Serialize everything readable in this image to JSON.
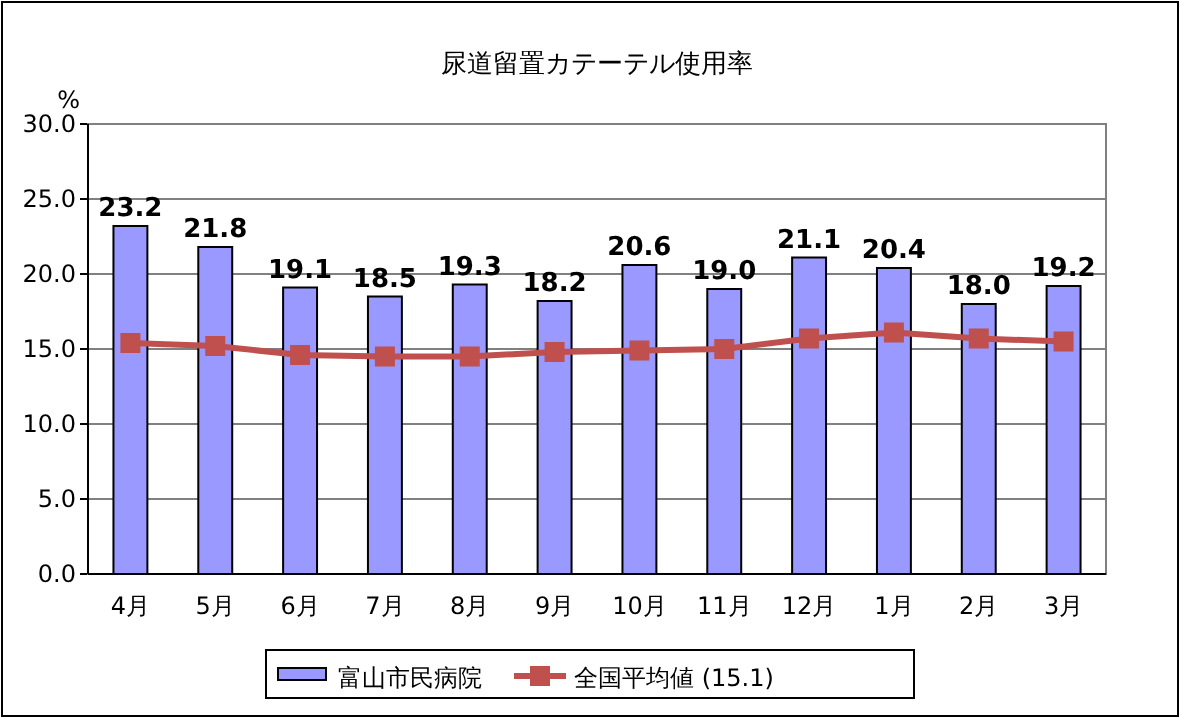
{
  "chart_data": {
    "type": "bar",
    "title": "尿道留置カテーテル使用率",
    "ylabel": "%",
    "categories": [
      "4月",
      "5月",
      "6月",
      "7月",
      "8月",
      "9月",
      "10月",
      "11月",
      "12月",
      "1月",
      "2月",
      "3月"
    ],
    "series": [
      {
        "name": "富山市民病院",
        "color": "#9999ff",
        "values": [
          23.2,
          21.8,
          19.1,
          18.5,
          19.3,
          18.2,
          20.6,
          19.0,
          21.1,
          20.4,
          18.0,
          19.2
        ],
        "value_labels": [
          "23.2",
          "21.8",
          "19.1",
          "18.5",
          "19.3",
          "18.2",
          "20.6",
          "19.0",
          "21.1",
          "20.4",
          "18.0",
          "19.2"
        ]
      },
      {
        "name": "全国平均値 (15.1)",
        "type": "line",
        "color": "#c0504d",
        "marker": "square",
        "values": [
          15.4,
          15.2,
          14.6,
          14.5,
          14.5,
          14.8,
          14.9,
          15.0,
          15.7,
          16.1,
          15.7,
          15.5
        ]
      }
    ],
    "ylim": [
      0,
      30
    ],
    "yticks": [
      {
        "value": 0,
        "label": "0.0"
      },
      {
        "value": 5,
        "label": "5.0"
      },
      {
        "value": 10,
        "label": "10.0"
      },
      {
        "value": 15,
        "label": "15.0"
      },
      {
        "value": 20,
        "label": "20.0"
      },
      {
        "value": 25,
        "label": "25.0"
      },
      {
        "value": 30,
        "label": "30.0"
      }
    ],
    "grid": "y",
    "legend": "bottom"
  }
}
